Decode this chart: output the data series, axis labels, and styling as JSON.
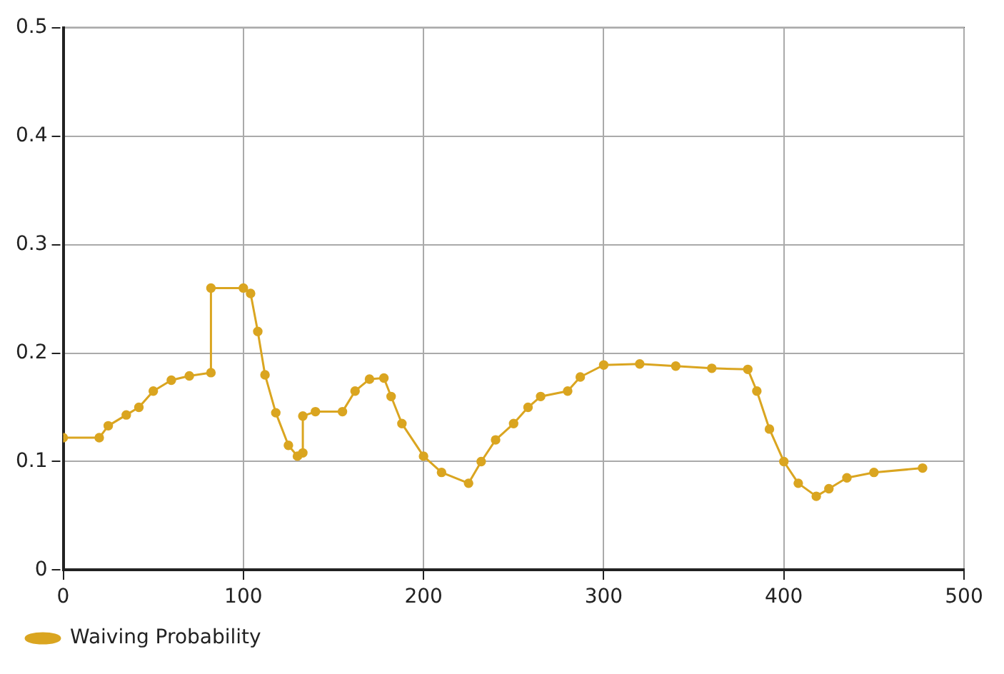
{
  "chart_data": {
    "type": "line",
    "xlim": [
      0,
      500
    ],
    "xticks": [
      0,
      100,
      200,
      300,
      400,
      500
    ],
    "ylim": [
      0,
      0.5
    ],
    "yticks": [
      0,
      0.1,
      0.2,
      0.3,
      0.4,
      0.5
    ],
    "grid": true,
    "legend": "bottom left",
    "marker": "circle",
    "line_style": "solid",
    "series": [
      {
        "name": "Waiving Probability",
        "color": "#daa520",
        "x": [
          0,
          20,
          25,
          35,
          42,
          50,
          60,
          70,
          82,
          82,
          100,
          104,
          108,
          112,
          118,
          125,
          130,
          133,
          133,
          140,
          155,
          162,
          170,
          178,
          182,
          188,
          200,
          210,
          225,
          232,
          240,
          250,
          258,
          265,
          280,
          287,
          300,
          320,
          340,
          360,
          380,
          385,
          392,
          400,
          408,
          418,
          425,
          435,
          450,
          477
        ],
        "values": [
          0.122,
          0.122,
          0.133,
          0.143,
          0.15,
          0.165,
          0.175,
          0.179,
          0.182,
          0.26,
          0.26,
          0.255,
          0.22,
          0.18,
          0.145,
          0.115,
          0.105,
          0.108,
          0.142,
          0.146,
          0.146,
          0.165,
          0.176,
          0.177,
          0.16,
          0.135,
          0.105,
          0.09,
          0.08,
          0.1,
          0.12,
          0.135,
          0.15,
          0.16,
          0.165,
          0.178,
          0.189,
          0.19,
          0.188,
          0.186,
          0.185,
          0.165,
          0.13,
          0.1,
          0.08,
          0.068,
          0.075,
          0.085,
          0.09,
          0.094
        ]
      }
    ]
  }
}
